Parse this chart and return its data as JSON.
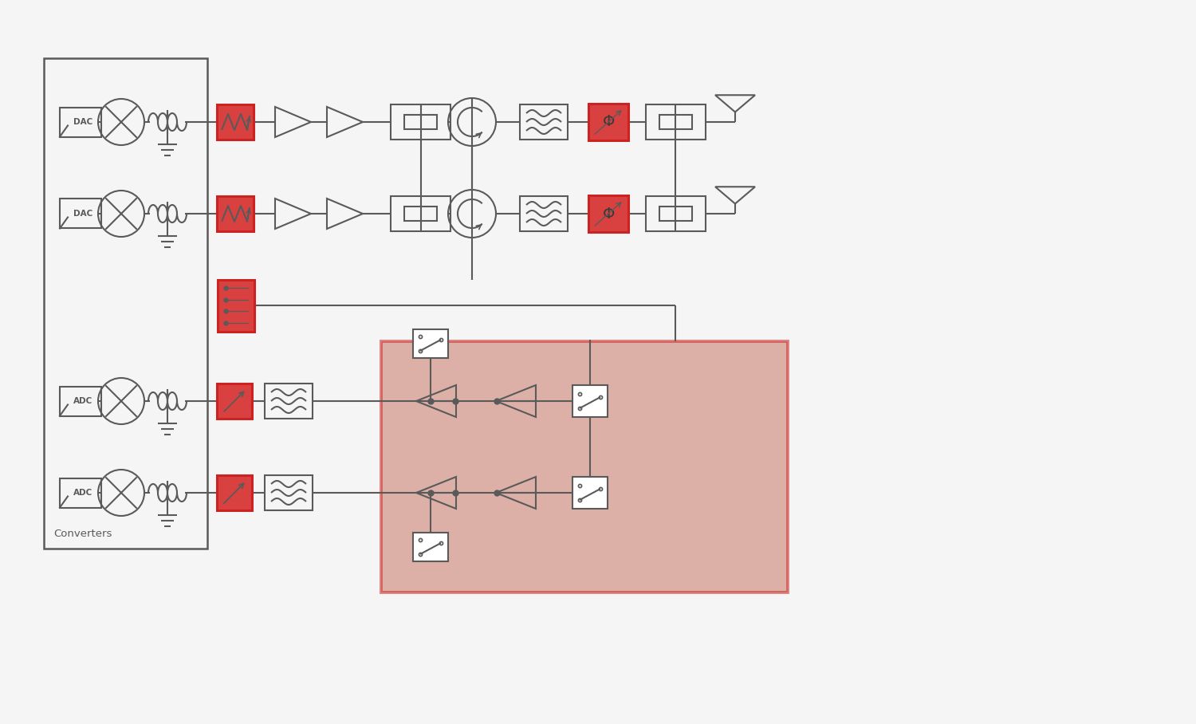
{
  "bg_color": "#f5f5f5",
  "dark_gray": "#5a5a5a",
  "red_fill": "#d94040",
  "red_border": "#cc2222",
  "red_bg_color": "#c87868",
  "red_bg_alpha": 0.55,
  "converters_label": "Converters",
  "fig_w": 15.0,
  "fig_h": 9.08,
  "xlim": [
    0,
    15.0
  ],
  "ylim": [
    0,
    9.08
  ]
}
